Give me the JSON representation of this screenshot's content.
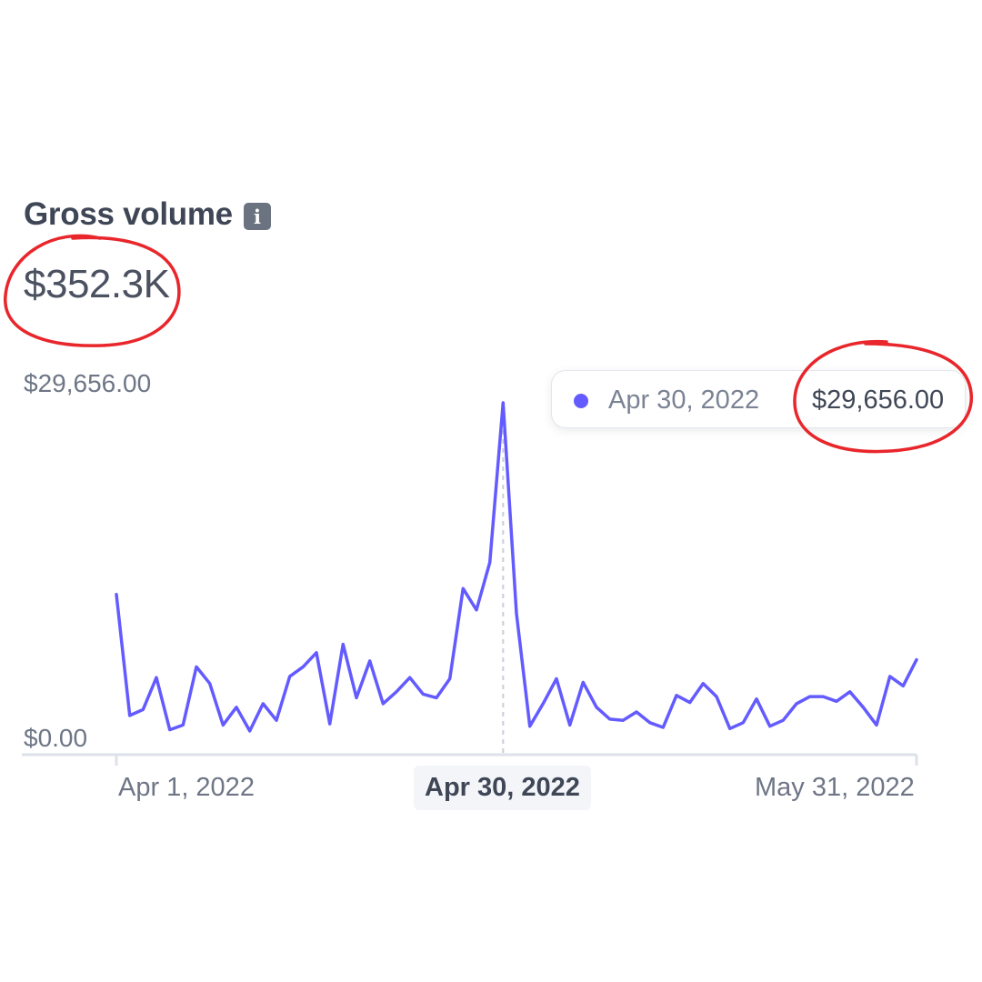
{
  "widget": {
    "title": "Gross volume",
    "info_icon_name": "info-icon",
    "info_icon_glyph": "i",
    "total": "$352.3K"
  },
  "tooltip": {
    "date": "Apr 30, 2022",
    "value": "$29,656.00"
  },
  "colors": {
    "line": "#635bff",
    "axis": "#dde1ea",
    "annotation": "#e8262b"
  },
  "chart_data": {
    "type": "line",
    "title": "",
    "xlabel": "",
    "ylabel": "",
    "y_tick_labels": [
      "$29,656.00",
      "$0.00"
    ],
    "x_tick_labels": [
      "Apr 1, 2022",
      "Apr 30, 2022",
      "May 31, 2022"
    ],
    "ylim": [
      0,
      29656
    ],
    "xlim": [
      "2022-04-01",
      "2022-05-31"
    ],
    "highlighted_date": "2022-04-30",
    "grid": false,
    "legend": "none",
    "series": [
      {
        "values": [
          13500,
          3300,
          3800,
          6500,
          2100,
          2500,
          7400,
          6000,
          2500,
          4000,
          2000,
          4300,
          2900,
          6600,
          7400,
          8600,
          2600,
          9300,
          4800,
          7900,
          4300,
          5300,
          6500,
          5100,
          4800,
          6400,
          14000,
          12200,
          16200,
          29656,
          11900,
          2400,
          4300,
          6400,
          2500,
          6100,
          4000,
          3000,
          2900,
          3600,
          2700,
          2300,
          5000,
          4400,
          6000,
          4900,
          2200,
          2700,
          4700,
          2400,
          2900,
          4300,
          4900,
          4900,
          4500,
          5300,
          4000,
          2500,
          6600,
          5800,
          8000
        ]
      }
    ]
  }
}
